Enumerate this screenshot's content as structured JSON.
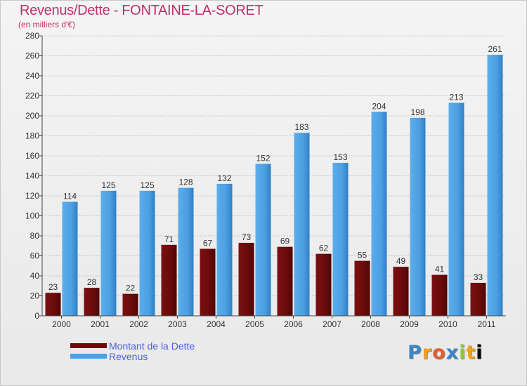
{
  "chart_data": {
    "type": "bar",
    "title": "Revenus/Dette - FONTAINE-LA-SORET",
    "subtitle": "(en milliers d'€)",
    "categories": [
      "2000",
      "2001",
      "2002",
      "2003",
      "2004",
      "2005",
      "2006",
      "2007",
      "2008",
      "2009",
      "2010",
      "2011"
    ],
    "series": [
      {
        "name": "Montant de la Dette",
        "color": "#6b0a0a",
        "values": [
          23,
          28,
          22,
          71,
          67,
          73,
          69,
          62,
          55,
          49,
          41,
          33
        ]
      },
      {
        "name": "Revenus",
        "color": "#4aa0e8",
        "values": [
          114,
          125,
          125,
          128,
          132,
          152,
          183,
          153,
          204,
          198,
          213,
          261
        ]
      }
    ],
    "ylim": [
      0,
      280
    ],
    "yticks": [
      0,
      20,
      40,
      60,
      80,
      100,
      120,
      140,
      160,
      180,
      200,
      220,
      240,
      260,
      280
    ],
    "grid": true,
    "legend_position": "bottom-left"
  },
  "logo": {
    "letters": [
      "P",
      "r",
      "o",
      "x",
      "i",
      "t",
      "i"
    ]
  }
}
